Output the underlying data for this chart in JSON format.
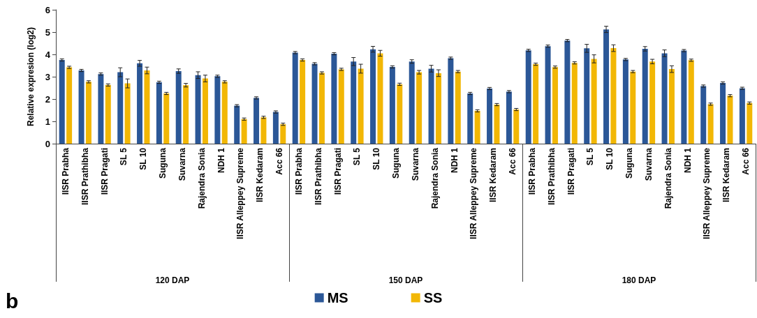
{
  "chart_data": {
    "type": "bar",
    "ylabel": "Relative expresion (log2)",
    "categories": [
      "IISR Prabha",
      "IISR Prathibha",
      "IISR Pragati",
      "SL 5",
      "SL 10",
      "Suguna",
      "Suvarna",
      "Rajendra Sonia",
      "NDH 1",
      "IISR Alleppey Supreme",
      "IISR Kedaram",
      "Acc 66",
      "IISR Prabha",
      "IISR Prathibha",
      "IISR Pragati",
      "SL 5",
      "SL 10",
      "Suguna",
      "Suvarna",
      "Rajendra Sonia",
      "NDH 1",
      "IISR Alleppey Supreme",
      "IISR Kedaram",
      "Acc 66",
      "IISR Prabha",
      "IISR Prathibha",
      "IISR Pragati",
      "SL 5",
      "SL 10",
      "Suguna",
      "Suvarna",
      "Rajendra Sonia",
      "NDH 1",
      "IISR Alleppey Supreme",
      "IISR Kedaram",
      "Acc 66"
    ],
    "series": [
      {
        "name": "MS",
        "color": "#2b5797",
        "values": [
          3.75,
          3.28,
          3.12,
          3.2,
          3.6,
          2.75,
          3.25,
          3.07,
          3.02,
          1.7,
          2.05,
          1.42,
          4.08,
          3.58,
          4.03,
          3.68,
          4.23,
          3.44,
          3.68,
          3.36,
          3.83,
          2.25,
          2.47,
          2.33,
          4.18,
          4.37,
          4.62,
          4.27,
          5.12,
          3.77,
          4.25,
          4.05,
          4.17,
          2.58,
          2.72,
          2.48
        ],
        "errors": [
          0.05,
          0.05,
          0.05,
          0.2,
          0.13,
          0.05,
          0.1,
          0.15,
          0.05,
          0.05,
          0.05,
          0.05,
          0.05,
          0.05,
          0.05,
          0.18,
          0.13,
          0.05,
          0.08,
          0.15,
          0.05,
          0.05,
          0.05,
          0.05,
          0.05,
          0.05,
          0.05,
          0.18,
          0.14,
          0.05,
          0.1,
          0.15,
          0.05,
          0.05,
          0.05,
          0.05
        ]
      },
      {
        "name": "SS",
        "color": "#f2b705",
        "values": [
          3.42,
          2.77,
          2.63,
          2.7,
          3.28,
          2.25,
          2.62,
          2.92,
          2.77,
          1.1,
          1.18,
          0.87,
          3.75,
          3.17,
          3.33,
          3.36,
          4.05,
          2.66,
          3.2,
          3.16,
          3.23,
          1.47,
          1.75,
          1.53,
          3.56,
          3.43,
          3.62,
          3.8,
          4.28,
          3.23,
          3.68,
          3.34,
          3.74,
          1.77,
          2.15,
          1.82
        ],
        "errors": [
          0.05,
          0.05,
          0.05,
          0.2,
          0.15,
          0.05,
          0.08,
          0.15,
          0.05,
          0.05,
          0.05,
          0.05,
          0.05,
          0.05,
          0.05,
          0.2,
          0.13,
          0.05,
          0.08,
          0.15,
          0.05,
          0.05,
          0.05,
          0.05,
          0.05,
          0.05,
          0.05,
          0.18,
          0.15,
          0.05,
          0.1,
          0.15,
          0.05,
          0.05,
          0.05,
          0.05
        ]
      }
    ],
    "ylim": [
      0,
      6
    ],
    "yticks": [
      0,
      1,
      2,
      3,
      4,
      5,
      6
    ],
    "grid": false,
    "legend": "bottom",
    "annotations": [
      "120 DAP",
      "150 DAP",
      "180 DAP",
      "b"
    ]
  }
}
